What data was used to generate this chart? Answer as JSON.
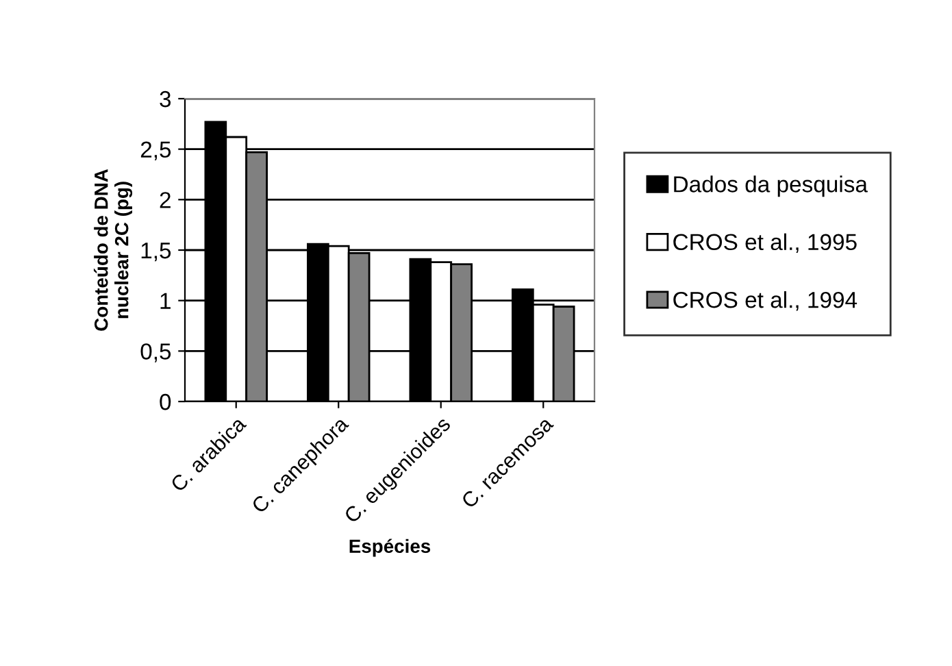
{
  "chart_data": {
    "type": "bar",
    "xlabel": "Espécies",
    "ylabel": "Conteúdo de DNA\nnuclear 2C (pg)",
    "categories": [
      "C. arabica",
      "C. canephora",
      "C. eugenioides",
      "C. racemosa"
    ],
    "series": [
      {
        "name": "Dados da pesquisa",
        "color": "#000000",
        "values": [
          2.77,
          1.56,
          1.41,
          1.11
        ]
      },
      {
        "name": "CROS et al., 1995",
        "color": "#ffffff",
        "values": [
          2.62,
          1.54,
          1.38,
          0.96
        ]
      },
      {
        "name": "CROS et al., 1994",
        "color": "#808080",
        "values": [
          2.47,
          1.47,
          1.36,
          0.94
        ]
      }
    ],
    "ylim": [
      0,
      3
    ],
    "yticks": [
      0,
      {
        "value": 0.5,
        "label": "0,5"
      },
      1,
      {
        "value": 1.5,
        "label": "1,5"
      },
      2,
      {
        "value": 2.5,
        "label": "2,5"
      },
      3
    ],
    "grid": "y",
    "legend": "right"
  }
}
